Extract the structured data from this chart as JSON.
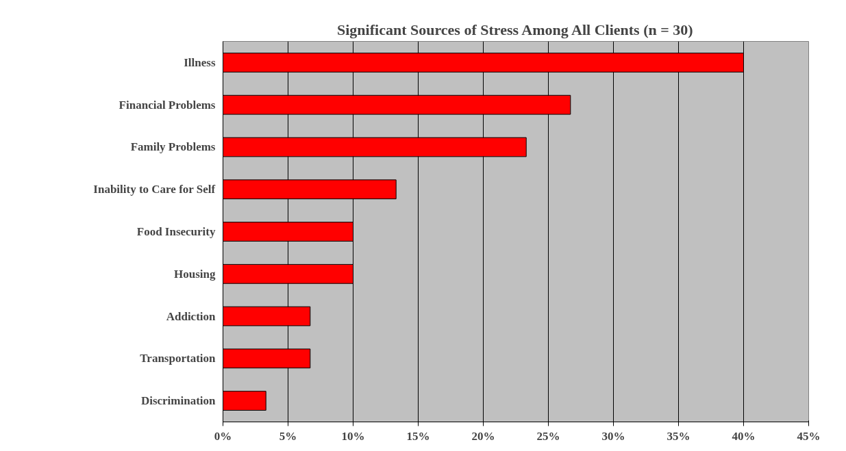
{
  "chart_data": {
    "type": "bar",
    "orientation": "horizontal",
    "title": "Significant Sources of Stress Among All Clients (n = 30)",
    "categories": [
      "Illness",
      "Financial Problems",
      "Family Problems",
      "Inability to Care for Self",
      "Food Insecurity",
      "Housing",
      "Addiction",
      "Transportation",
      "Discrimination"
    ],
    "values": [
      40,
      26.7,
      23.3,
      13.3,
      10,
      10,
      6.7,
      6.7,
      3.3
    ],
    "color": "#ff0000",
    "xlim": [
      0,
      45
    ],
    "xticks": [
      {
        "value": 0,
        "label": "0%"
      },
      {
        "value": 5,
        "label": "5%"
      },
      {
        "value": 10,
        "label": "10%"
      },
      {
        "value": 15,
        "label": "15%"
      },
      {
        "value": 20,
        "label": "20%"
      },
      {
        "value": 25,
        "label": "25%"
      },
      {
        "value": 30,
        "label": "30%"
      },
      {
        "value": 35,
        "label": "35%"
      },
      {
        "value": 40,
        "label": "40%"
      },
      {
        "value": 45,
        "label": "45%"
      }
    ],
    "grid": "x"
  }
}
